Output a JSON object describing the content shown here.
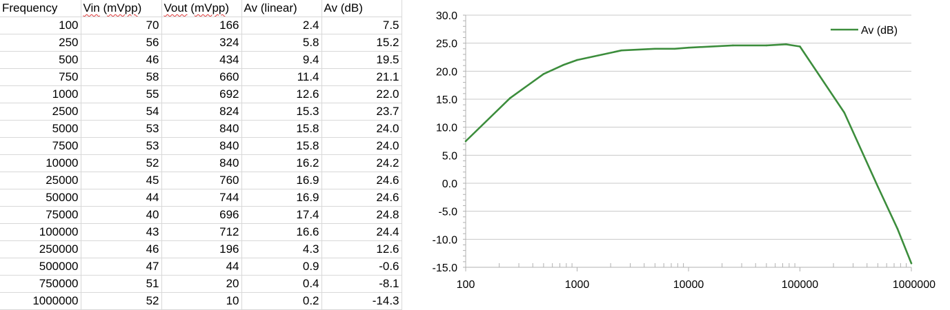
{
  "sheet": {
    "headers": [
      "Frequency",
      "Vin (mVpp)",
      "Vout (mVpp)",
      "Av (linear)",
      "Av (dB)"
    ],
    "rows": [
      [
        "100",
        "70",
        "166",
        "2.4",
        "7.5"
      ],
      [
        "250",
        "56",
        "324",
        "5.8",
        "15.2"
      ],
      [
        "500",
        "46",
        "434",
        "9.4",
        "19.5"
      ],
      [
        "750",
        "58",
        "660",
        "11.4",
        "21.1"
      ],
      [
        "1000",
        "55",
        "692",
        "12.6",
        "22.0"
      ],
      [
        "2500",
        "54",
        "824",
        "15.3",
        "23.7"
      ],
      [
        "5000",
        "53",
        "840",
        "15.8",
        "24.0"
      ],
      [
        "7500",
        "53",
        "840",
        "15.8",
        "24.0"
      ],
      [
        "10000",
        "52",
        "840",
        "16.2",
        "24.2"
      ],
      [
        "25000",
        "45",
        "760",
        "16.9",
        "24.6"
      ],
      [
        "50000",
        "44",
        "744",
        "16.9",
        "24.6"
      ],
      [
        "75000",
        "40",
        "696",
        "17.4",
        "24.8"
      ],
      [
        "100000",
        "43",
        "712",
        "16.6",
        "24.4"
      ],
      [
        "250000",
        "46",
        "196",
        "4.3",
        "12.6"
      ],
      [
        "500000",
        "47",
        "44",
        "0.9",
        "-0.6"
      ],
      [
        "750000",
        "51",
        "20",
        "0.4",
        "-8.1"
      ],
      [
        "1000000",
        "52",
        "10",
        "0.2",
        "-14.3"
      ]
    ]
  },
  "chart_data": {
    "type": "line",
    "x_scale": "log",
    "xlim": [
      100,
      1000000
    ],
    "ylim": [
      -15,
      30
    ],
    "x_ticks": [
      "100",
      "1000",
      "10000",
      "100000",
      "1000000"
    ],
    "y_ticks": [
      "30.0",
      "25.0",
      "20.0",
      "15.0",
      "10.0",
      "5.0",
      "0.0",
      "-5.0",
      "-10.0",
      "-15.0"
    ],
    "grid": "horizontal",
    "legend": "top-right",
    "series": [
      {
        "name": "Av (dB)",
        "color": "#3c8d3c",
        "x": [
          100,
          250,
          500,
          750,
          1000,
          2500,
          5000,
          7500,
          10000,
          25000,
          50000,
          75000,
          100000,
          250000,
          500000,
          750000,
          1000000
        ],
        "y": [
          7.5,
          15.2,
          19.5,
          21.1,
          22.0,
          23.7,
          24.0,
          24.0,
          24.2,
          24.6,
          24.6,
          24.8,
          24.4,
          12.6,
          -0.6,
          -8.1,
          -14.3
        ]
      }
    ]
  }
}
